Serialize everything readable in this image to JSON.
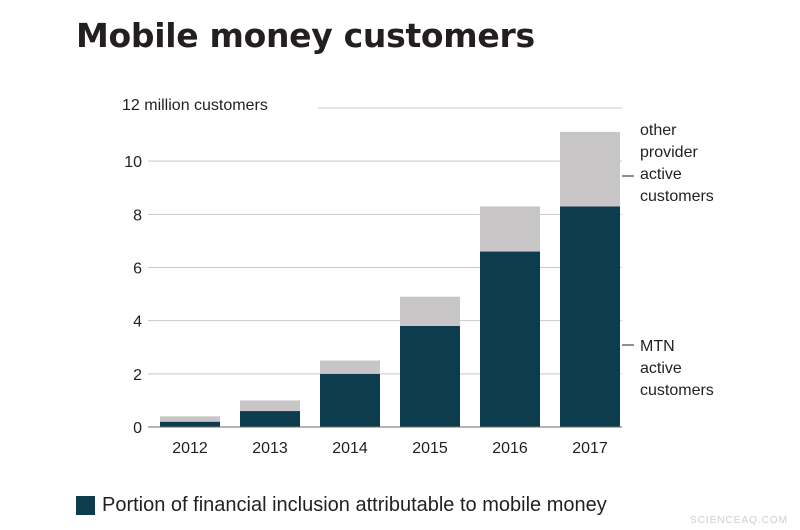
{
  "chart_data": {
    "type": "bar",
    "stacked": true,
    "title": "Mobile money customers",
    "ylabel": "12 million customers",
    "ylim": [
      0,
      12
    ],
    "y_ticks": [
      0,
      2,
      4,
      6,
      8,
      10
    ],
    "categories": [
      "2012",
      "2013",
      "2014",
      "2015",
      "2016",
      "2017"
    ],
    "series": [
      {
        "name": "MTN active customers",
        "values": [
          0.2,
          0.6,
          2.0,
          3.8,
          6.6,
          8.3
        ],
        "color": "#0c3c4d"
      },
      {
        "name": "other provider active customers",
        "values": [
          0.2,
          0.4,
          0.5,
          1.1,
          1.7,
          2.8
        ],
        "color": "#c8c5c6"
      }
    ],
    "annotations": {
      "other": [
        "other",
        "provider",
        "active",
        "customers"
      ],
      "mtn": [
        "MTN",
        "active",
        "customers"
      ]
    },
    "legend": {
      "label": "Portion of financial inclusion attributable to mobile money",
      "color": "#0c3c4d",
      "placement": "bottom-left"
    },
    "grid": true
  },
  "watermark": "SCIENCEAQ.COM"
}
